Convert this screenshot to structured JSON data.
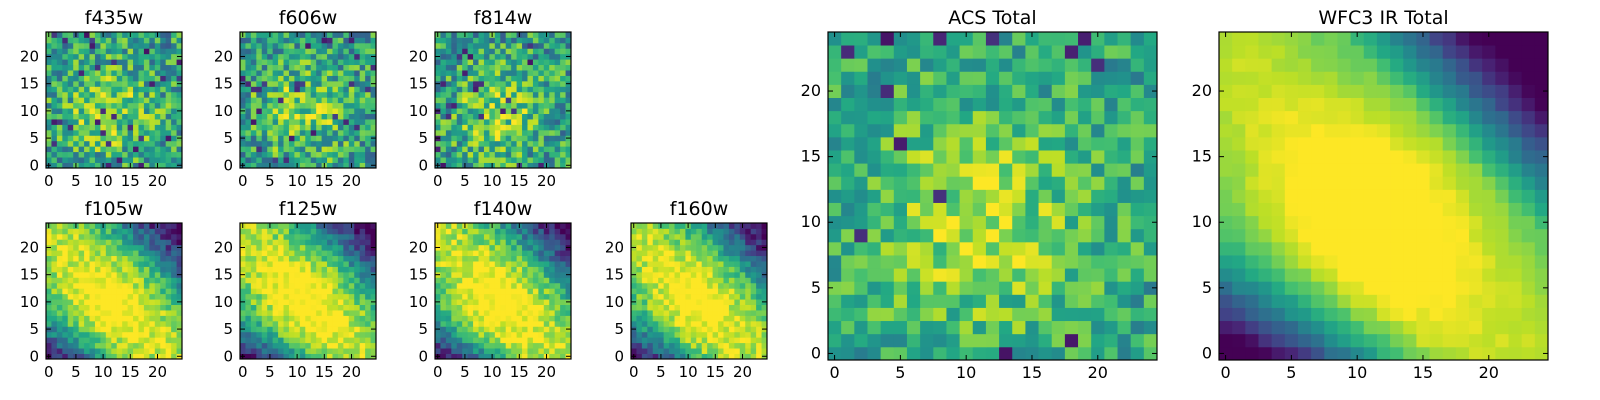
{
  "chart_data": {
    "type": "heatmap",
    "colormap": "viridis",
    "grid": false,
    "panels": [
      {
        "id": "f435w",
        "title": "f435w",
        "xlim": [
          0,
          24
        ],
        "ylim": [
          0,
          24
        ],
        "xticks": [
          0,
          5,
          10,
          15,
          20
        ],
        "yticks": [
          0,
          5,
          10,
          15,
          20
        ],
        "pattern": "acs-noisy",
        "seed": 11
      },
      {
        "id": "f606w",
        "title": "f606w",
        "xlim": [
          0,
          24
        ],
        "ylim": [
          0,
          24
        ],
        "xticks": [
          0,
          5,
          10,
          15,
          20
        ],
        "yticks": [
          0,
          5,
          10,
          15,
          20
        ],
        "pattern": "acs-noisy",
        "seed": 23
      },
      {
        "id": "f814w",
        "title": "f814w",
        "xlim": [
          0,
          24
        ],
        "ylim": [
          0,
          24
        ],
        "xticks": [
          0,
          5,
          10,
          15,
          20
        ],
        "yticks": [
          0,
          5,
          10,
          15,
          20
        ],
        "pattern": "acs-noisy",
        "seed": 37
      },
      {
        "id": "f105w",
        "title": "f105w",
        "xlim": [
          0,
          24
        ],
        "ylim": [
          0,
          24
        ],
        "xticks": [
          0,
          5,
          10,
          15,
          20
        ],
        "yticks": [
          0,
          5,
          10,
          15,
          20
        ],
        "pattern": "ir-band",
        "seed": 41
      },
      {
        "id": "f125w",
        "title": "f125w",
        "xlim": [
          0,
          24
        ],
        "ylim": [
          0,
          24
        ],
        "xticks": [
          0,
          5,
          10,
          15,
          20
        ],
        "yticks": [
          0,
          5,
          10,
          15,
          20
        ],
        "pattern": "ir-band",
        "seed": 53
      },
      {
        "id": "f140w",
        "title": "f140w",
        "xlim": [
          0,
          24
        ],
        "ylim": [
          0,
          24
        ],
        "xticks": [
          0,
          5,
          10,
          15,
          20
        ],
        "yticks": [
          0,
          5,
          10,
          15,
          20
        ],
        "pattern": "ir-band",
        "seed": 67
      },
      {
        "id": "f160w",
        "title": "f160w",
        "xlim": [
          0,
          24
        ],
        "ylim": [
          0,
          24
        ],
        "xticks": [
          0,
          5,
          10,
          15,
          20
        ],
        "yticks": [
          0,
          5,
          10,
          15,
          20
        ],
        "pattern": "ir-band",
        "seed": 79
      },
      {
        "id": "acs-total",
        "title": "ACS Total",
        "xlim": [
          0,
          24
        ],
        "ylim": [
          0,
          24
        ],
        "xticks": [
          0,
          5,
          10,
          15,
          20
        ],
        "yticks": [
          0,
          5,
          10,
          15,
          20
        ],
        "pattern": "acs-total",
        "seed": 97
      },
      {
        "id": "wfc3-ir-total",
        "title": "WFC3 IR Total",
        "xlim": [
          0,
          24
        ],
        "ylim": [
          0,
          24
        ],
        "xticks": [
          0,
          5,
          10,
          15,
          20
        ],
        "yticks": [
          0,
          5,
          10,
          15,
          20
        ],
        "pattern": "ir-total",
        "seed": 113
      }
    ]
  }
}
